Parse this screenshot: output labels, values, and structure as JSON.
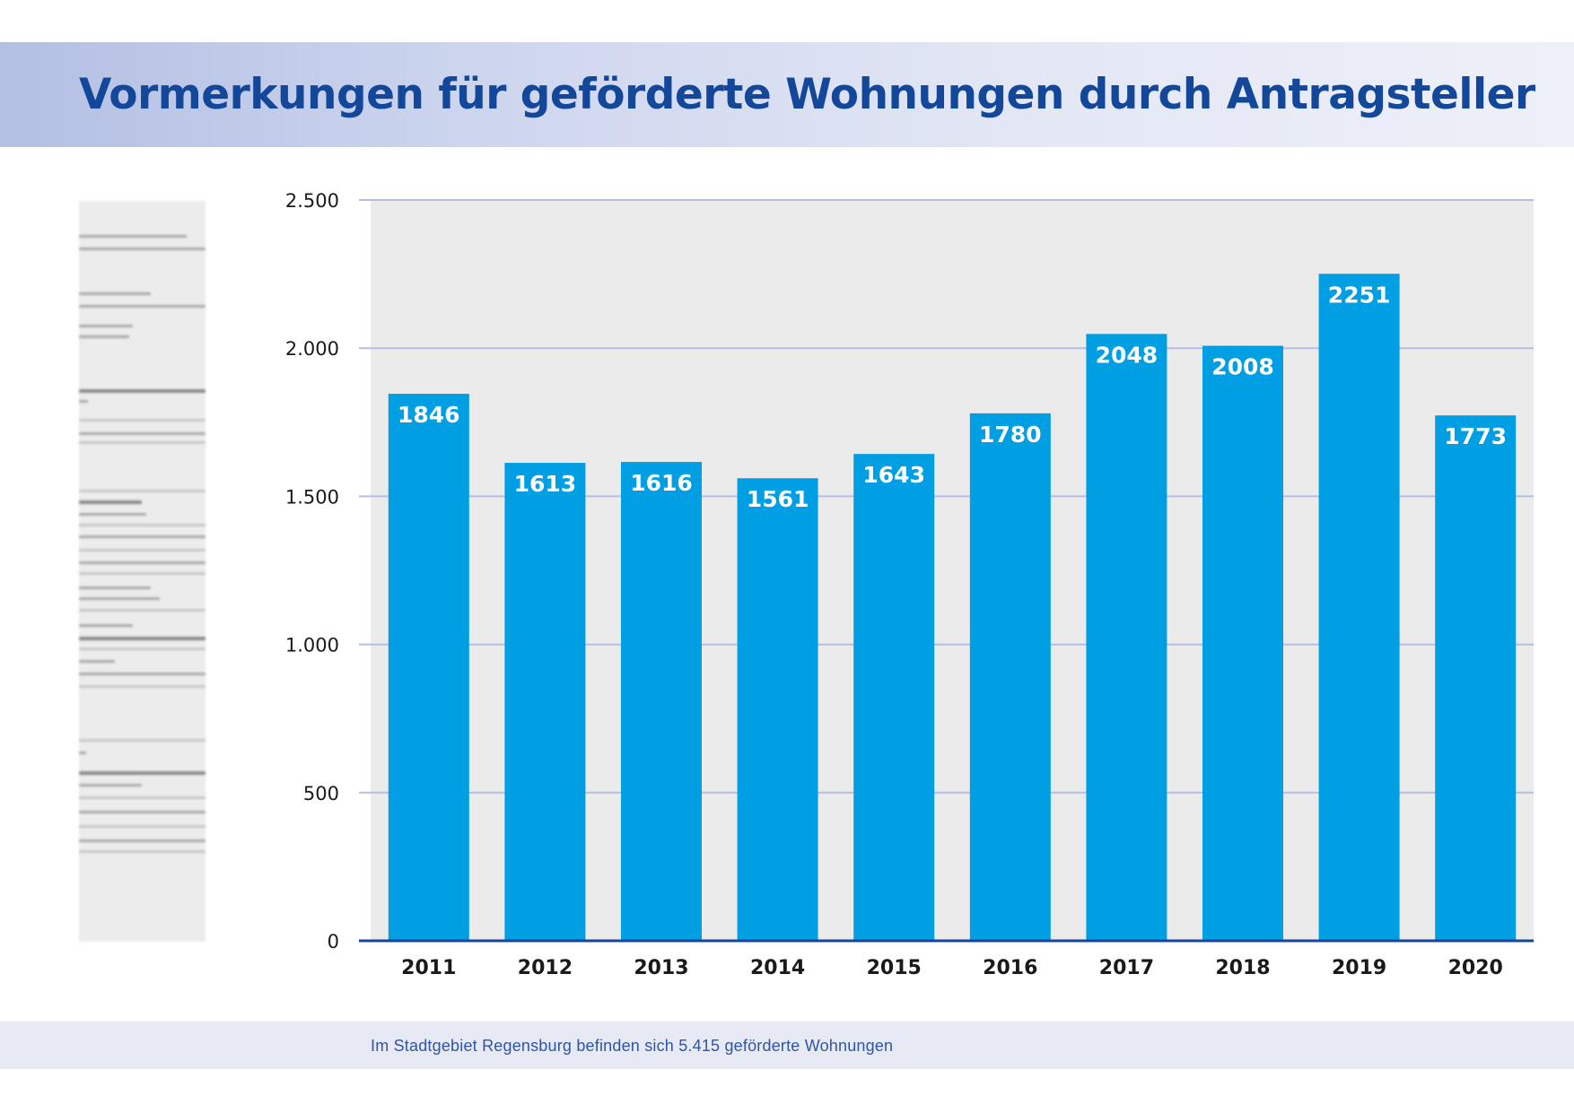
{
  "page": {
    "title": "Vormerkungen für geförderte Wohnungen durch Antragsteller",
    "footer_note": "Im Stadtgebiet Regensburg befinden sich 5.415 geförderte Wohnungen"
  },
  "chart_data": {
    "type": "bar",
    "title": "Vormerkungen für geförderte Wohnungen durch Antragsteller",
    "xlabel": "",
    "ylabel": "",
    "categories": [
      "2011",
      "2012",
      "2013",
      "2014",
      "2015",
      "2016",
      "2017",
      "2018",
      "2019",
      "2020"
    ],
    "values": [
      1846,
      1613,
      1616,
      1561,
      1643,
      1780,
      2048,
      2008,
      2251,
      1773
    ],
    "data_labels": [
      "1846",
      "1613",
      "1616",
      "1561",
      "1643",
      "1780",
      "2048",
      "2008",
      "2251",
      "1773"
    ],
    "ylim": [
      0,
      2500
    ],
    "yticks": [
      0,
      500,
      1000,
      1500,
      2000,
      2500
    ],
    "ytick_labels": [
      "0",
      "500",
      "1.000",
      "1.500",
      "2.000",
      "2.500"
    ],
    "grid": true,
    "legend": "none",
    "colors": {
      "bar": "#009fe3",
      "plot_background": "#ebebeb",
      "gridline": "#b6bde5",
      "baseline": "#13479a",
      "data_label": "#ffffff",
      "axis_text": "#1a1a1a"
    }
  },
  "decor": {
    "left_image": "blurred-document-icon"
  }
}
